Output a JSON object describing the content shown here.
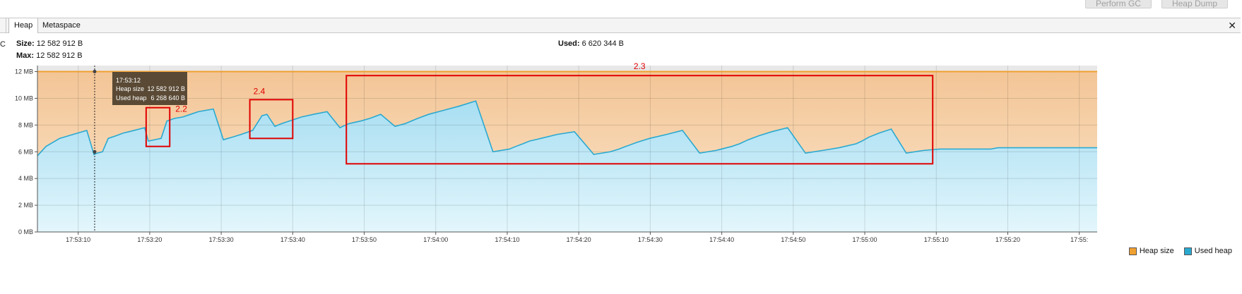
{
  "toolbar": {
    "perform_gc_label": "Perform GC",
    "heap_dump_label": "Heap Dump"
  },
  "tabs": [
    {
      "label": "Heap",
      "active": true
    },
    {
      "label": "Metaspace",
      "active": false
    }
  ],
  "close_icon_glyph": "✕",
  "edge_glyph": "C",
  "stats": {
    "size_label": "Size:",
    "size_value": "12 582 912 B",
    "max_label": "Max:",
    "max_value": "12 582 912 B",
    "used_label": "Used:",
    "used_value": "6 620 344 B"
  },
  "tooltip": {
    "time": "17:53:12",
    "heap_size_label": "Heap size",
    "heap_size_value": "12 582 912 B",
    "used_heap_label": "Used heap",
    "used_heap_value": "6 268 640 B"
  },
  "annotations": [
    {
      "label": "2.2",
      "x_start": "17:53:19.5",
      "x_end": "17:53:22.8",
      "y_range_mb": [
        6.4,
        9.3
      ]
    },
    {
      "label": "2.4",
      "x_start": "17:53:34",
      "x_end": "17:53:40",
      "y_range_mb": [
        7.0,
        9.9
      ]
    },
    {
      "label": "2.3",
      "x_start": "17:53:47.5",
      "x_end": "17:55:09.5",
      "y_range_mb": [
        5.1,
        11.7
      ]
    }
  ],
  "colors": {
    "heap_size": "#f0a030",
    "used_heap": "#2aa9d0",
    "annotation_box": "#e00000",
    "tooltip_bg": "#5a4a35"
  },
  "legend": [
    {
      "label": "Heap size",
      "color": "#f0a030"
    },
    {
      "label": "Used heap",
      "color": "#2aa9d0"
    }
  ],
  "chart_data": {
    "type": "area",
    "x_start": "17:53:00",
    "x_tick_labels": [
      "17:53:10",
      "17:53:20",
      "17:53:30",
      "17:53:40",
      "17:53:50",
      "17:54:00",
      "17:54:10",
      "17:54:20",
      "17:54:30",
      "17:54:40",
      "17:54:50",
      "17:55:00",
      "17:55:10",
      "17:55:20",
      "17:55:"
    ],
    "x_tick_seconds": [
      10,
      20,
      30,
      40,
      50,
      60,
      70,
      80,
      90,
      100,
      110,
      120,
      130,
      140,
      150
    ],
    "x_range_seconds": [
      4.3,
      152.5
    ],
    "y_tick_labels": [
      "0 MB",
      "2 MB",
      "4 MB",
      "6 MB",
      "8 MB",
      "10 MB",
      "12 MB"
    ],
    "y_tick_values": [
      0,
      2,
      4,
      6,
      8,
      10,
      12
    ],
    "ylim": [
      0,
      12.45
    ],
    "grid": true,
    "legend_position": "bottom-right",
    "series": [
      {
        "name": "Heap size",
        "x": [
          4.3,
          152.5
        ],
        "y": [
          12.0,
          12.0
        ]
      },
      {
        "name": "Used heap",
        "x": [
          4.3,
          5.5,
          7.4,
          9.3,
          11.2,
          12.2,
          12.7,
          13.4,
          14.2,
          15.3,
          16.3,
          17.1,
          19.3,
          19.8,
          21.6,
          22.4,
          23.5,
          24.6,
          25.7,
          26.8,
          28.9,
          30.3,
          31.6,
          32.8,
          34.4,
          35.7,
          36.4,
          37.5,
          38.4,
          40.1,
          41.2,
          42.9,
          44.8,
          46.6,
          47.8,
          49.5,
          50.8,
          52.3,
          54.3,
          55.7,
          56.6,
          57.5,
          59.0,
          61.1,
          63.2,
          65.6,
          68.0,
          70.3,
          71.2,
          72.2,
          73.1,
          74.7,
          77.0,
          79.4,
          82.1,
          84.4,
          85.6,
          86.6,
          88.1,
          89.9,
          92.3,
          94.5,
          96.9,
          99.2,
          101.4,
          102.5,
          103.7,
          105.2,
          107.0,
          109.2,
          111.7,
          114.1,
          116.4,
          118.8,
          119.6,
          120.6,
          122.0,
          123.7,
          125.8,
          128.2,
          130.5,
          132.9,
          135.2,
          137.6,
          138.6,
          139.6,
          140.6,
          142.2,
          144.7,
          147.0,
          149.5,
          152.5
        ],
        "y": [
          5.7,
          6.4,
          7.0,
          7.3,
          7.6,
          5.8,
          5.9,
          6.0,
          7.0,
          7.2,
          7.4,
          7.5,
          7.8,
          6.8,
          7.0,
          8.3,
          8.5,
          8.6,
          8.8,
          9.0,
          9.2,
          6.9,
          7.1,
          7.3,
          7.6,
          8.7,
          8.8,
          7.9,
          8.1,
          8.4,
          8.6,
          8.8,
          9.0,
          7.8,
          8.1,
          8.3,
          8.5,
          8.8,
          7.9,
          8.1,
          8.3,
          8.5,
          8.8,
          9.1,
          9.4,
          9.8,
          6.0,
          6.2,
          6.4,
          6.6,
          6.8,
          7.0,
          7.3,
          7.5,
          5.8,
          6.0,
          6.2,
          6.4,
          6.7,
          7.0,
          7.3,
          7.6,
          5.9,
          6.1,
          6.4,
          6.6,
          6.9,
          7.2,
          7.5,
          7.8,
          5.9,
          6.1,
          6.3,
          6.6,
          6.8,
          7.1,
          7.4,
          7.7,
          5.9,
          6.1,
          6.2,
          6.2,
          6.2,
          6.2,
          6.3,
          6.3,
          6.3,
          6.3,
          6.3,
          6.3,
          6.3,
          6.3
        ]
      }
    ],
    "hover_x_seconds": 12.3,
    "hover_y_mb": 6.0
  }
}
